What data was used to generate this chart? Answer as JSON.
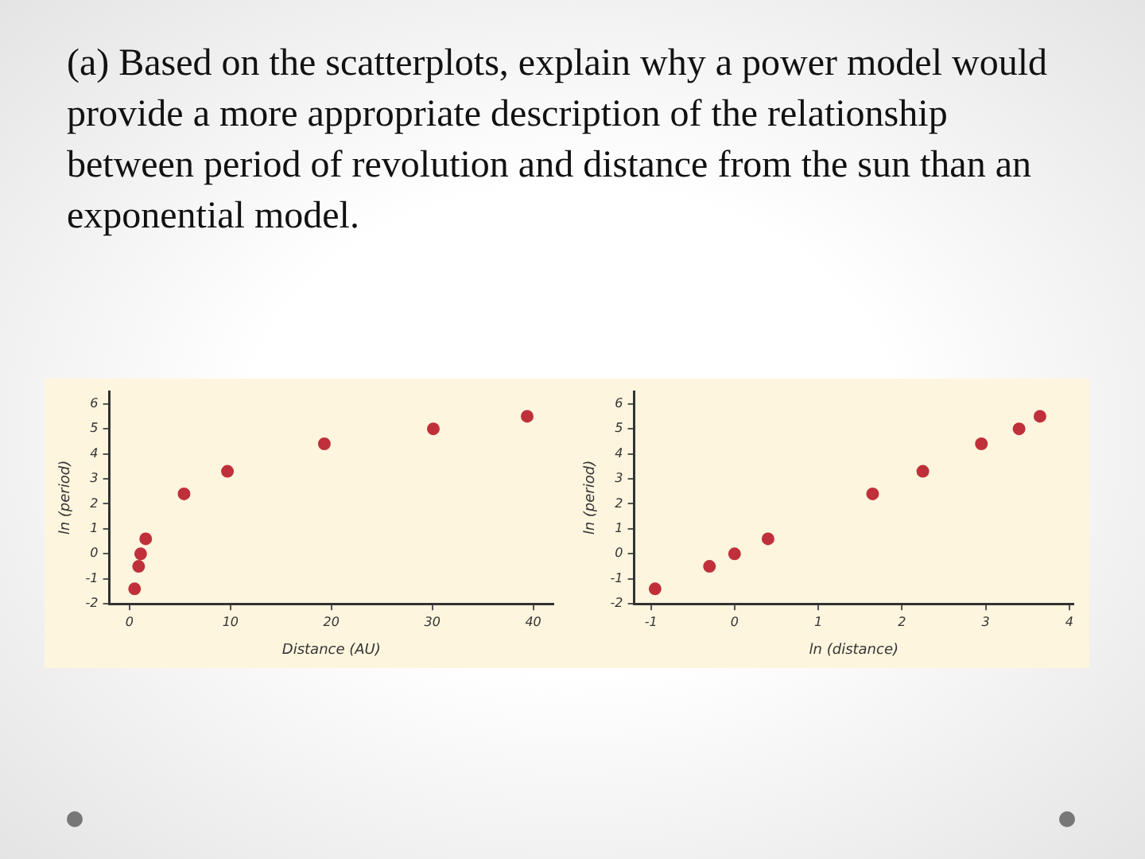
{
  "chart_data": [
    {
      "type": "scatter",
      "title": "(a) Based on the scatterplots, explain why a power model would provide a more appropriate description of the relationship between period of revolution and distance from the sun than an exponential model.",
      "xlabel": "Distance (AU)",
      "ylabel": "ln (period)",
      "x": [
        0.5,
        0.9,
        1.1,
        1.6,
        5.4,
        9.7,
        19.3,
        30.1,
        39.4
      ],
      "values": [
        -1.4,
        -0.5,
        0,
        0.6,
        2.4,
        3.3,
        4.4,
        5.0,
        5.5
      ],
      "color": "#c0303a",
      "marker": "circle",
      "xlim": [
        -2,
        42
      ],
      "xticks": [
        0,
        10,
        20,
        30,
        40
      ],
      "ylim": [
        -2,
        6.5
      ],
      "yticks": [
        -2,
        -1,
        0,
        1,
        2,
        3,
        4,
        5,
        6
      ],
      "grid": false,
      "legend": false
    },
    {
      "type": "scatter",
      "xlabel": "ln (distance)",
      "ylabel": "ln (period)",
      "x": [
        -0.95,
        -0.3,
        0,
        0.4,
        1.65,
        2.25,
        2.95,
        3.4,
        3.65
      ],
      "values": [
        -1.4,
        -0.5,
        0,
        0.6,
        2.4,
        3.3,
        4.4,
        5.0,
        5.5
      ],
      "color": "#c0303a",
      "marker": "circle",
      "xlim": [
        -1.2,
        4.05
      ],
      "xticks": [
        -1,
        0,
        1,
        2,
        3,
        4
      ],
      "ylim": [
        -2,
        6.5
      ],
      "yticks": [
        -2,
        -1,
        0,
        1,
        2,
        3,
        4,
        5,
        6
      ],
      "grid": false,
      "legend": false
    }
  ]
}
